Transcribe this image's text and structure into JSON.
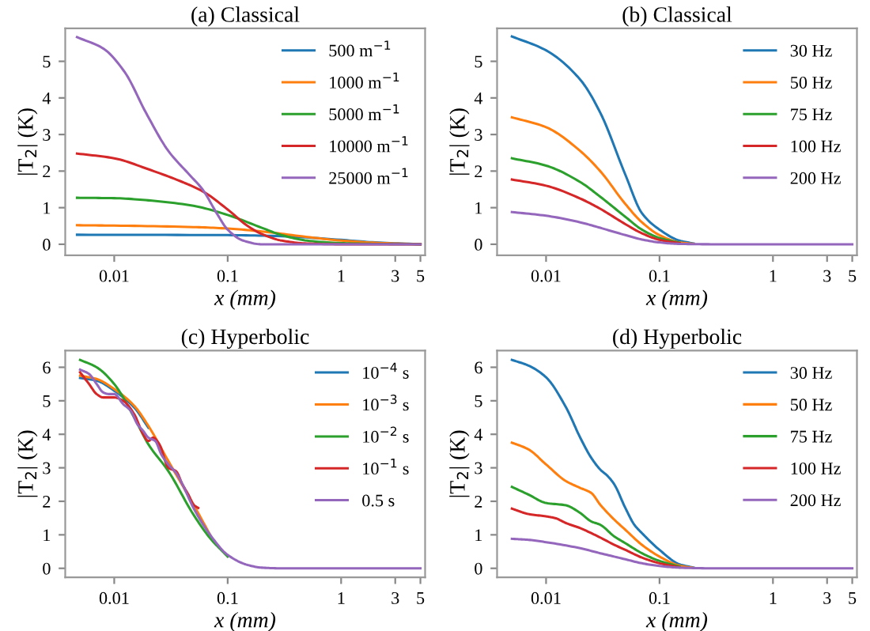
{
  "chart_data": [
    {
      "type": "line",
      "title": "(a) Classical",
      "xlabel": "x (mm)",
      "ylabel": "|T$_{2}$| (K)",
      "log": "x",
      "xlim": [
        0.0037,
        5.5
      ],
      "ylim": [
        -0.3,
        5.9
      ],
      "xticks": [
        0.01,
        0.1,
        1,
        3,
        5
      ],
      "yticks": [
        0,
        1,
        2,
        3,
        4,
        5
      ],
      "legend": "top right",
      "grid": false,
      "marker": "none",
      "line_style": "solid",
      "series": [
        {
          "name": "500 m$^{−1}$",
          "color": "#1f77b4",
          "x": [
            0.0047,
            0.1,
            0.3,
            1,
            2,
            5
          ],
          "values": [
            0.26,
            0.25,
            0.22,
            0.12,
            0.05,
            0
          ]
        },
        {
          "name": "1000 m$^{−1}$",
          "color": "#ff7f0e",
          "x": [
            0.0047,
            0.01,
            0.05,
            0.1,
            0.2,
            0.5,
            1,
            2,
            5
          ],
          "values": [
            0.52,
            0.51,
            0.47,
            0.43,
            0.35,
            0.2,
            0.1,
            0.04,
            0
          ]
        },
        {
          "name": "5000 m$^{−1}$",
          "color": "#2ca02c",
          "x": [
            0.0047,
            0.01,
            0.02,
            0.05,
            0.1,
            0.2,
            0.3,
            0.5,
            1,
            2,
            5
          ],
          "values": [
            1.27,
            1.26,
            1.2,
            1.05,
            0.8,
            0.45,
            0.25,
            0.1,
            0.03,
            0.01,
            0
          ]
        },
        {
          "name": "10000 m$^{−1}$",
          "color": "#d62728",
          "x": [
            0.0047,
            0.01,
            0.02,
            0.04,
            0.06,
            0.1,
            0.15,
            0.2,
            0.3,
            0.5,
            1,
            5
          ],
          "values": [
            2.48,
            2.35,
            2.05,
            1.7,
            1.45,
            0.95,
            0.5,
            0.28,
            0.1,
            0.02,
            0,
            0
          ]
        },
        {
          "name": "25000 m$^{−1}$",
          "color": "#9467bd",
          "x": [
            0.0047,
            0.008,
            0.0124,
            0.019,
            0.03,
            0.046,
            0.06,
            0.08,
            0.1,
            0.137,
            0.2,
            5
          ],
          "values": [
            5.66,
            5.35,
            4.7,
            3.6,
            2.55,
            1.9,
            1.5,
            0.85,
            0.4,
            0.1,
            0,
            0
          ]
        }
      ]
    },
    {
      "type": "line",
      "title": "(b) Classical",
      "xlabel": "x (mm)",
      "ylabel": "|T$_{2}$| (K)",
      "log": "x",
      "xlim": [
        0.0037,
        5.5
      ],
      "ylim": [
        -0.3,
        5.9
      ],
      "xticks": [
        0.01,
        0.1,
        1,
        3,
        5
      ],
      "yticks": [
        0,
        1,
        2,
        3,
        4,
        5
      ],
      "legend": "top right",
      "grid": false,
      "marker": "none",
      "line_style": "solid",
      "series": [
        {
          "name": "30 Hz",
          "color": "#1f77b4",
          "x": [
            0.005,
            0.01,
            0.02,
            0.03,
            0.05,
            0.07,
            0.1,
            0.15,
            0.2
          ],
          "values": [
            5.68,
            5.3,
            4.5,
            3.6,
            1.9,
            0.85,
            0.4,
            0.1,
            0.02
          ]
        },
        {
          "name": "50 Hz",
          "color": "#ff7f0e",
          "x": [
            0.005,
            0.01,
            0.02,
            0.03,
            0.05,
            0.07,
            0.1,
            0.15,
            0.2
          ],
          "values": [
            3.47,
            3.2,
            2.55,
            2.0,
            1.1,
            0.6,
            0.25,
            0.05,
            0.01
          ]
        },
        {
          "name": "75 Hz",
          "color": "#2ca02c",
          "x": [
            0.005,
            0.01,
            0.02,
            0.03,
            0.05,
            0.07,
            0.1,
            0.15
          ],
          "values": [
            2.35,
            2.15,
            1.7,
            1.3,
            0.75,
            0.4,
            0.17,
            0.04
          ]
        },
        {
          "name": "100 Hz",
          "color": "#d62728",
          "x": [
            0.005,
            0.01,
            0.02,
            0.03,
            0.05,
            0.07,
            0.1,
            0.15
          ],
          "values": [
            1.77,
            1.6,
            1.25,
            0.97,
            0.55,
            0.3,
            0.12,
            0.03
          ]
        },
        {
          "name": "200 Hz",
          "color": "#9467bd",
          "x": [
            0.005,
            0.01,
            0.02,
            0.03,
            0.05,
            0.07,
            0.1,
            0.15,
            0.3,
            5
          ],
          "values": [
            0.88,
            0.78,
            0.6,
            0.45,
            0.25,
            0.13,
            0.05,
            0.01,
            0,
            0
          ]
        }
      ]
    },
    {
      "type": "line",
      "title": "(c) Hyperbolic",
      "xlabel": "x (mm)",
      "ylabel": "|T$_{2}$| (K)",
      "log": "x",
      "xlim": [
        0.0037,
        5.5
      ],
      "ylim": [
        -0.27,
        6.5
      ],
      "xticks": [
        0.01,
        0.1,
        1,
        3,
        5
      ],
      "yticks": [
        0,
        1,
        2,
        3,
        4,
        5,
        6
      ],
      "legend": "top right",
      "grid": false,
      "marker": "none",
      "line_style": "solid",
      "series": [
        {
          "name": "10$^{−4}$ s",
          "color": "#1f77b4",
          "x": [
            0.005,
            0.007,
            0.01,
            0.015,
            0.02
          ],
          "values": [
            5.68,
            5.6,
            5.3,
            4.8,
            4.2
          ]
        },
        {
          "name": "10$^{−3}$ s",
          "color": "#ff7f0e",
          "x": [
            0.005,
            0.007,
            0.01,
            0.015,
            0.02,
            0.03,
            0.05,
            0.07
          ],
          "values": [
            5.75,
            5.65,
            5.35,
            4.85,
            4.25,
            3.2,
            1.9,
            1.0
          ]
        },
        {
          "name": "10$^{−2}$ s",
          "color": "#2ca02c",
          "x": [
            0.005,
            0.007,
            0.01,
            0.015,
            0.02,
            0.03,
            0.05,
            0.07,
            0.1
          ],
          "values": [
            6.22,
            6.0,
            5.5,
            4.5,
            3.7,
            2.9,
            1.6,
            0.9,
            0.35
          ]
        },
        {
          "name": "10$^{−1}$ s",
          "color": "#d62728",
          "x": [
            0.005,
            0.006,
            0.007,
            0.008,
            0.01,
            0.012,
            0.015,
            0.018,
            0.02,
            0.022,
            0.025,
            0.03,
            0.035,
            0.04,
            0.045,
            0.05,
            0.055
          ],
          "values": [
            5.85,
            5.5,
            5.2,
            5.1,
            5.1,
            5.0,
            4.6,
            4.0,
            3.8,
            3.9,
            3.7,
            3.0,
            2.9,
            2.5,
            2.2,
            1.9,
            1.8
          ]
        },
        {
          "name": "0.5 s",
          "color": "#9467bd",
          "x": [
            0.005,
            0.006,
            0.007,
            0.008,
            0.009,
            0.01,
            0.012,
            0.014,
            0.016,
            0.018,
            0.02,
            0.023,
            0.026,
            0.03,
            0.035,
            0.04,
            0.05,
            0.07,
            0.1,
            0.15,
            0.2,
            0.3,
            5
          ],
          "values": [
            5.93,
            5.8,
            5.5,
            5.25,
            5.2,
            5.2,
            4.9,
            4.7,
            4.3,
            4.1,
            3.9,
            3.8,
            3.4,
            3.1,
            2.85,
            2.5,
            1.8,
            1.0,
            0.4,
            0.1,
            0.02,
            0,
            0
          ]
        }
      ]
    },
    {
      "type": "line",
      "title": "(d) Hyperbolic",
      "xlabel": "x (mm)",
      "ylabel": "|T$_{2}$| (K)",
      "log": "x",
      "xlim": [
        0.0037,
        5.5
      ],
      "ylim": [
        -0.27,
        6.5
      ],
      "xticks": [
        0.01,
        0.1,
        1,
        3,
        5
      ],
      "yticks": [
        0,
        1,
        2,
        3,
        4,
        5,
        6
      ],
      "legend": "top right",
      "grid": false,
      "marker": "none",
      "line_style": "solid",
      "series": [
        {
          "name": "30 Hz",
          "color": "#1f77b4",
          "x": [
            0.005,
            0.007,
            0.01,
            0.015,
            0.02,
            0.025,
            0.03,
            0.035,
            0.04,
            0.05,
            0.06,
            0.07,
            0.1,
            0.15,
            0.2
          ],
          "values": [
            6.22,
            6.05,
            5.7,
            4.8,
            3.9,
            3.3,
            2.95,
            2.75,
            2.5,
            1.8,
            1.3,
            1.05,
            0.55,
            0.12,
            0.02
          ]
        },
        {
          "name": "50 Hz",
          "color": "#ff7f0e",
          "x": [
            0.005,
            0.007,
            0.01,
            0.015,
            0.02,
            0.025,
            0.03,
            0.04,
            0.05,
            0.07,
            0.1,
            0.15,
            0.2
          ],
          "values": [
            3.75,
            3.55,
            3.1,
            2.6,
            2.4,
            2.25,
            1.9,
            1.45,
            1.15,
            0.7,
            0.35,
            0.08,
            0.01
          ]
        },
        {
          "name": "75 Hz",
          "color": "#2ca02c",
          "x": [
            0.005,
            0.007,
            0.01,
            0.015,
            0.02,
            0.025,
            0.03,
            0.04,
            0.05,
            0.07,
            0.1,
            0.15
          ],
          "values": [
            2.43,
            2.2,
            1.95,
            1.88,
            1.65,
            1.4,
            1.3,
            0.95,
            0.75,
            0.45,
            0.22,
            0.05
          ]
        },
        {
          "name": "100 Hz",
          "color": "#d62728",
          "x": [
            0.005,
            0.007,
            0.01,
            0.012,
            0.015,
            0.02,
            0.025,
            0.03,
            0.04,
            0.05,
            0.07,
            0.1,
            0.15
          ],
          "values": [
            1.78,
            1.62,
            1.55,
            1.5,
            1.35,
            1.2,
            1.05,
            0.92,
            0.7,
            0.55,
            0.32,
            0.15,
            0.03
          ]
        },
        {
          "name": "200 Hz",
          "color": "#9467bd",
          "x": [
            0.005,
            0.007,
            0.01,
            0.02,
            0.03,
            0.05,
            0.07,
            0.1,
            0.15,
            0.3,
            5
          ],
          "values": [
            0.88,
            0.85,
            0.78,
            0.6,
            0.45,
            0.27,
            0.15,
            0.07,
            0.02,
            0,
            0
          ]
        }
      ]
    }
  ]
}
